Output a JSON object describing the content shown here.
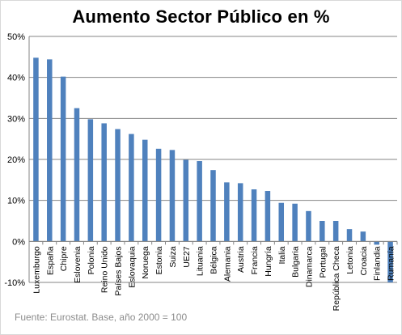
{
  "chart_data": {
    "type": "bar",
    "title": "Aumento Sector Público en %",
    "source_note": "Fuente: Eurostat. Base, año 2000 = 100",
    "categories": [
      "Luxemburgo",
      "España",
      "Chipre",
      "Eslovenia",
      "Polonia",
      "Reino Unido",
      "Países Bajos",
      "Eslovaquia",
      "Noruega",
      "Estonia",
      "Suiza",
      "UE27",
      "Lituania",
      "Bélgica",
      "Alemania",
      "Austria",
      "Francia",
      "Hungría",
      "Italia",
      "Bulgaria",
      "Dinamarca",
      "Portugal",
      "República Checa",
      "Letonia",
      "Croacia",
      "Finlandia",
      "Rumanía"
    ],
    "values": [
      44.8,
      44.4,
      40.2,
      32.5,
      29.8,
      28.8,
      27.4,
      26.2,
      24.8,
      22.6,
      22.3,
      19.9,
      19.6,
      17.4,
      14.4,
      14.2,
      12.7,
      12.3,
      9.4,
      9.2,
      7.4,
      5.0,
      5.0,
      3.0,
      2.4,
      -0.8,
      -10.0
    ],
    "ylim": [
      -10,
      50
    ],
    "yticks": [
      -10,
      0,
      10,
      20,
      30,
      40,
      50
    ],
    "ytick_labels": [
      "-10%",
      "0%",
      "10%",
      "20%",
      "30%",
      "40%",
      "50%"
    ],
    "bar_color": "#4f81bd",
    "grid": true,
    "legend": "none",
    "xlabel": "",
    "ylabel": ""
  }
}
